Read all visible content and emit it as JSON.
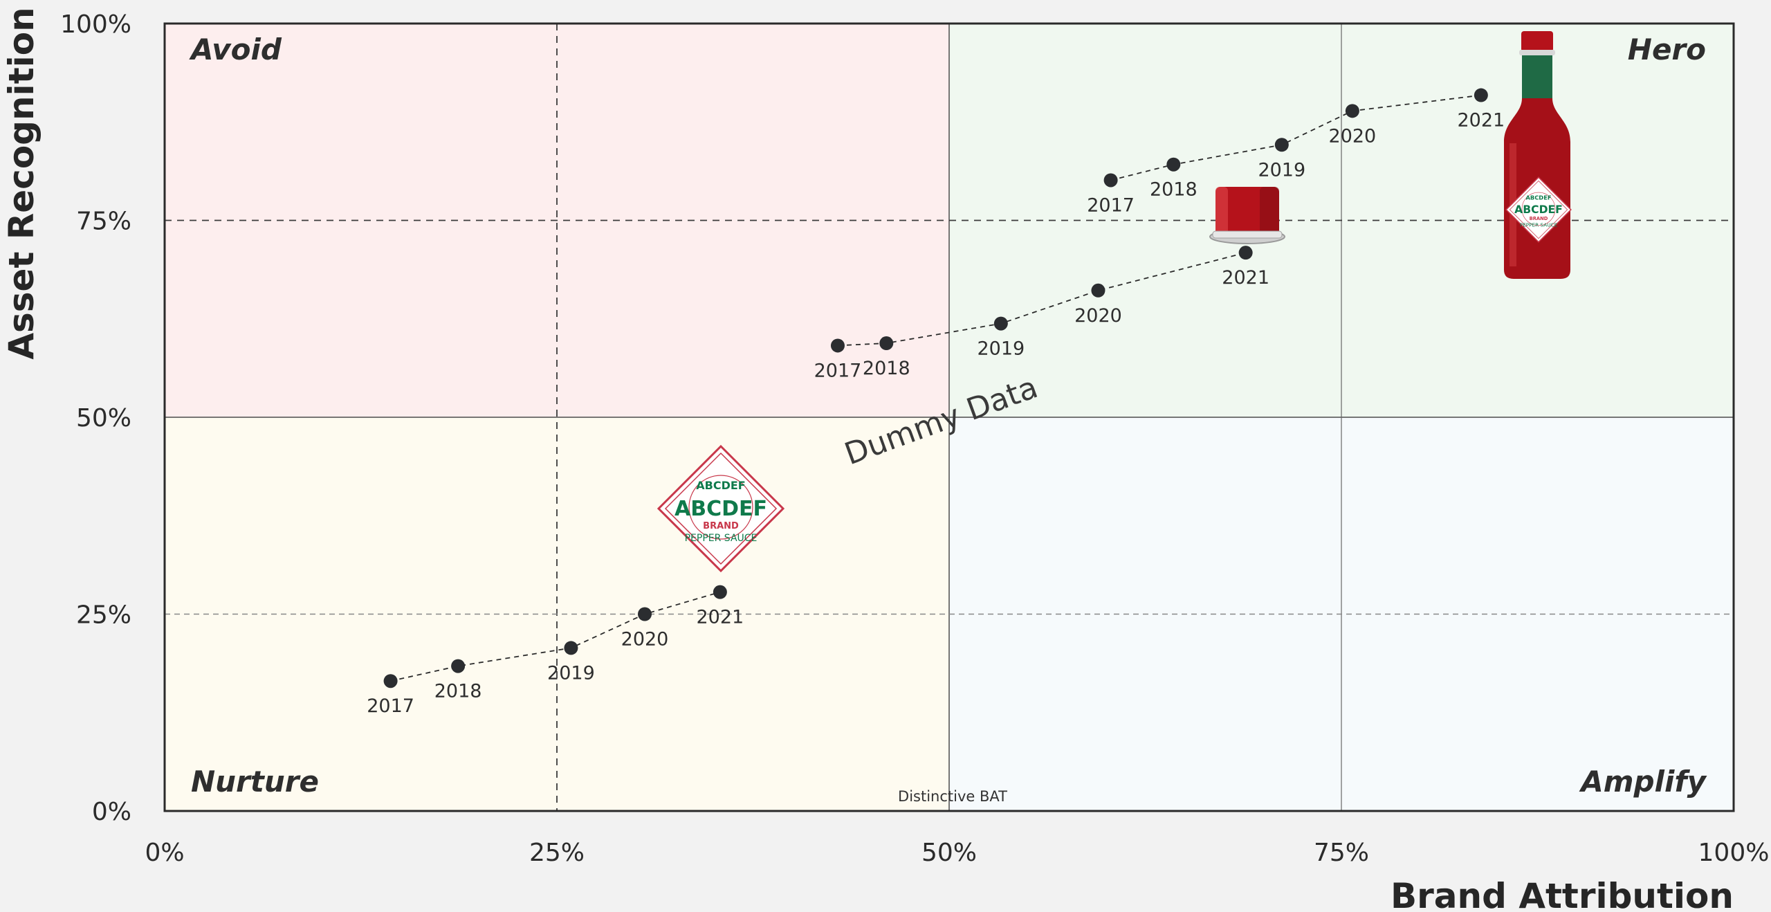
{
  "chart_data": {
    "type": "scatter",
    "xlabel": "Brand Attribution",
    "ylabel": "Asset Recognition",
    "xlim": [
      0,
      100
    ],
    "ylim": [
      0,
      100
    ],
    "x_ticks": [
      "0%",
      "25%",
      "50%",
      "75%",
      "100%"
    ],
    "y_ticks": [
      "0%",
      "25%",
      "50%",
      "75%",
      "100%"
    ],
    "quadrant_labels": {
      "top_left": "Avoid",
      "top_right": "Hero",
      "bottom_left": "Nurture",
      "bottom_right": "Amplify"
    },
    "quadrant_colors": {
      "top_left": "#fdeeee",
      "top_right": "#f0f8f0",
      "bottom_left": "#fefbf0",
      "bottom_right": "#f6fafc"
    },
    "reference_lines": {
      "x": [
        25,
        75
      ],
      "y": [
        25,
        75
      ],
      "quadrant_split_x": 50,
      "quadrant_split_y": 50
    },
    "watermark": "Dummy Data",
    "annotation": "Distinctive BAT",
    "series": [
      {
        "icon": "logo-diamond-icon",
        "points": [
          {
            "label": "2017",
            "x": 14.4,
            "y": 16.5
          },
          {
            "label": "2018",
            "x": 18.7,
            "y": 18.4
          },
          {
            "label": "2019",
            "x": 25.9,
            "y": 20.7
          },
          {
            "label": "2020",
            "x": 30.6,
            "y": 25.0
          },
          {
            "label": "2021",
            "x": 35.4,
            "y": 27.8
          }
        ]
      },
      {
        "icon": "bottle-cap-icon",
        "points": [
          {
            "label": "2017",
            "x": 42.9,
            "y": 59.1
          },
          {
            "label": "2018",
            "x": 46.0,
            "y": 59.4
          },
          {
            "label": "2019",
            "x": 53.3,
            "y": 61.9
          },
          {
            "label": "2020",
            "x": 59.5,
            "y": 66.1
          },
          {
            "label": "2021",
            "x": 68.9,
            "y": 70.9
          }
        ]
      },
      {
        "icon": "sauce-bottle-icon",
        "points": [
          {
            "label": "2017",
            "x": 60.3,
            "y": 80.1
          },
          {
            "label": "2018",
            "x": 64.3,
            "y": 82.1
          },
          {
            "label": "2019",
            "x": 71.2,
            "y": 84.6
          },
          {
            "label": "2020",
            "x": 75.7,
            "y": 88.9
          },
          {
            "label": "2021",
            "x": 83.9,
            "y": 90.9
          }
        ]
      }
    ],
    "brand_icon_text": {
      "brand": "ABCDEF",
      "subtitle": "BRAND",
      "product": "PEPPER SAUCE"
    }
  }
}
